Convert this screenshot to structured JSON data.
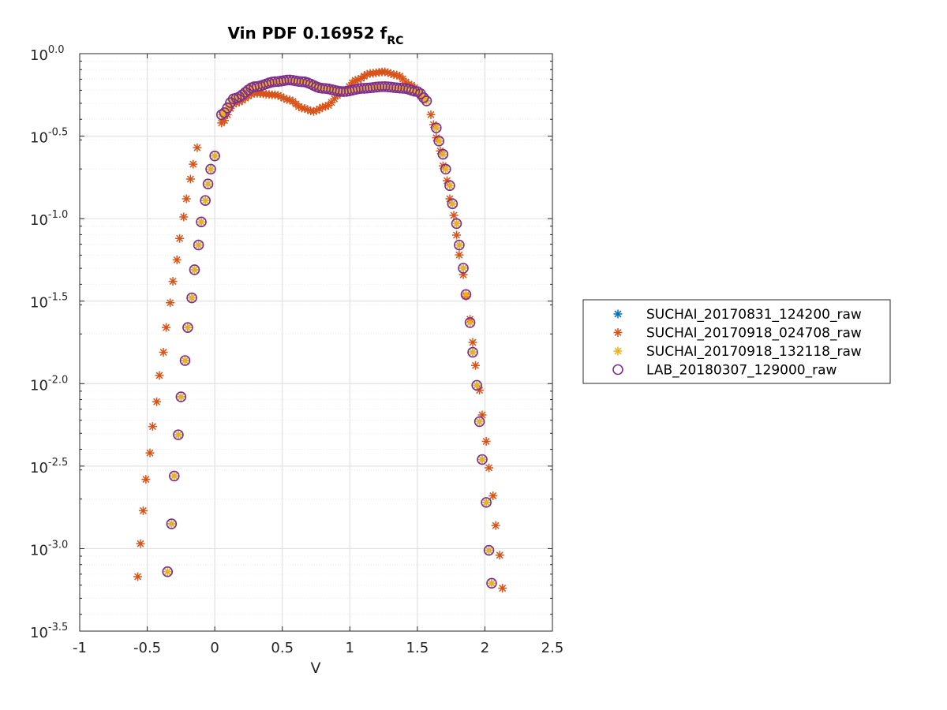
{
  "chart_data": {
    "type": "scatter",
    "title": "Vin PDF 0.16952 f",
    "title_subscript": "RC",
    "xlabel": "V",
    "ylabel": "",
    "xlim": [
      -1,
      2.5
    ],
    "ylim_log10": [
      -3.5,
      0
    ],
    "y_scale": "log",
    "x_ticks": [
      -1,
      -0.5,
      0,
      0.5,
      1,
      1.5,
      2,
      2.5
    ],
    "x_tick_labels": [
      "-1",
      "-0.5",
      "0",
      "0.5",
      "1",
      "1.5",
      "2",
      "2.5"
    ],
    "y_ticks_log10": [
      0,
      -0.5,
      -1,
      -1.5,
      -2,
      -2.5,
      -3,
      -3.5
    ],
    "y_tick_base": "10",
    "y_tick_exponents": [
      "0.0",
      "-0.5",
      "-1.0",
      "-1.5",
      "-2.0",
      "-2.5",
      "-3.0",
      "-3.5"
    ],
    "grid": true,
    "minor_grid": true,
    "legend_position": "outside-right",
    "colors": {
      "axes": "#262626",
      "grid_major": "#dcdcdc",
      "grid_minor": "#ececec",
      "series_blue": "#0072BD",
      "series_orange": "#D95319",
      "series_yellow": "#EDB120",
      "series_purple": "#7E2F8E"
    },
    "series": [
      {
        "name": "SUCHAI_20170831_124200_raw",
        "marker": "asterisk",
        "color": "#0072BD",
        "shape": "base"
      },
      {
        "name": "SUCHAI_20170918_024708_raw",
        "marker": "asterisk",
        "color": "#D95319",
        "shape": "orange",
        "points": [
          [
            -0.57,
            -3.17
          ],
          [
            -0.55,
            -2.97
          ],
          [
            -0.53,
            -2.77
          ],
          [
            -0.51,
            -2.58
          ],
          [
            -0.48,
            -2.42
          ],
          [
            -0.46,
            -2.26
          ],
          [
            -0.43,
            -2.11
          ],
          [
            -0.41,
            -1.95
          ],
          [
            -0.38,
            -1.81
          ],
          [
            -0.36,
            -1.66
          ],
          [
            -0.33,
            -1.51
          ],
          [
            -0.31,
            -1.38
          ],
          [
            -0.28,
            -1.25
          ],
          [
            -0.26,
            -1.12
          ],
          [
            -0.23,
            -0.99
          ],
          [
            -0.21,
            -0.88
          ],
          [
            -0.18,
            -0.76
          ],
          [
            -0.16,
            -0.67
          ],
          [
            -0.13,
            -0.57
          ],
          [
            1.6,
            -0.37
          ],
          [
            1.62,
            -0.43
          ],
          [
            1.64,
            -0.51
          ],
          [
            1.67,
            -0.59
          ],
          [
            1.69,
            -0.68
          ],
          [
            1.72,
            -0.77
          ],
          [
            1.74,
            -0.88
          ],
          [
            1.77,
            -0.98
          ],
          [
            1.79,
            -1.1
          ],
          [
            1.81,
            -1.22
          ],
          [
            1.84,
            -1.34
          ],
          [
            1.86,
            -1.47
          ],
          [
            1.89,
            -1.61
          ],
          [
            1.91,
            -1.75
          ],
          [
            1.93,
            -1.89
          ],
          [
            1.96,
            -2.04
          ],
          [
            1.98,
            -2.19
          ],
          [
            2.01,
            -2.35
          ],
          [
            2.03,
            -2.51
          ],
          [
            2.06,
            -2.68
          ],
          [
            2.08,
            -2.86
          ],
          [
            2.11,
            -3.04
          ],
          [
            2.13,
            -3.24
          ]
        ]
      },
      {
        "name": "SUCHAI_20170918_132118_raw",
        "marker": "asterisk",
        "color": "#EDB120",
        "shape": "base"
      },
      {
        "name": "LAB_20180307_129000_raw",
        "marker": "circle",
        "color": "#7E2F8E",
        "shape": "base"
      }
    ],
    "base_shape_points": [
      [
        -0.35,
        -3.14
      ],
      [
        -0.32,
        -2.85
      ],
      [
        -0.3,
        -2.56
      ],
      [
        -0.27,
        -2.31
      ],
      [
        -0.25,
        -2.08
      ],
      [
        -0.22,
        -1.86
      ],
      [
        -0.2,
        -1.66
      ],
      [
        -0.17,
        -1.48
      ],
      [
        -0.15,
        -1.31
      ],
      [
        -0.12,
        -1.16
      ],
      [
        -0.1,
        -1.02
      ],
      [
        -0.07,
        -0.89
      ],
      [
        -0.05,
        -0.79
      ],
      [
        -0.03,
        -0.7
      ],
      [
        0.0,
        -0.62
      ],
      [
        1.64,
        -0.45
      ],
      [
        1.66,
        -0.53
      ],
      [
        1.69,
        -0.61
      ],
      [
        1.71,
        -0.7
      ],
      [
        1.74,
        -0.8
      ],
      [
        1.76,
        -0.91
      ],
      [
        1.79,
        -1.03
      ],
      [
        1.81,
        -1.16
      ],
      [
        1.84,
        -1.3
      ],
      [
        1.86,
        -1.46
      ],
      [
        1.89,
        -1.63
      ],
      [
        1.91,
        -1.81
      ],
      [
        1.94,
        -2.01
      ],
      [
        1.96,
        -2.23
      ],
      [
        1.98,
        -2.46
      ],
      [
        2.01,
        -2.72
      ],
      [
        2.03,
        -3.01
      ],
      [
        2.05,
        -3.21
      ]
    ],
    "base_shape_peak_curve": [
      [
        0.05,
        -0.37
      ],
      [
        0.15,
        -0.27
      ],
      [
        0.3,
        -0.2
      ],
      [
        0.45,
        -0.17
      ],
      [
        0.55,
        -0.16
      ],
      [
        0.65,
        -0.17
      ],
      [
        0.8,
        -0.21
      ],
      [
        0.95,
        -0.23
      ],
      [
        1.1,
        -0.21
      ],
      [
        1.25,
        -0.2
      ],
      [
        1.4,
        -0.21
      ],
      [
        1.5,
        -0.23
      ],
      [
        1.58,
        -0.29
      ]
    ],
    "orange_peak_curve": [
      [
        0.05,
        -0.42
      ],
      [
        0.15,
        -0.3
      ],
      [
        0.3,
        -0.24
      ],
      [
        0.45,
        -0.25
      ],
      [
        0.55,
        -0.28
      ],
      [
        0.65,
        -0.33
      ],
      [
        0.73,
        -0.35
      ],
      [
        0.82,
        -0.32
      ],
      [
        0.95,
        -0.23
      ],
      [
        1.05,
        -0.16
      ],
      [
        1.15,
        -0.12
      ],
      [
        1.25,
        -0.11
      ],
      [
        1.35,
        -0.13
      ],
      [
        1.45,
        -0.19
      ],
      [
        1.55,
        -0.27
      ]
    ]
  }
}
